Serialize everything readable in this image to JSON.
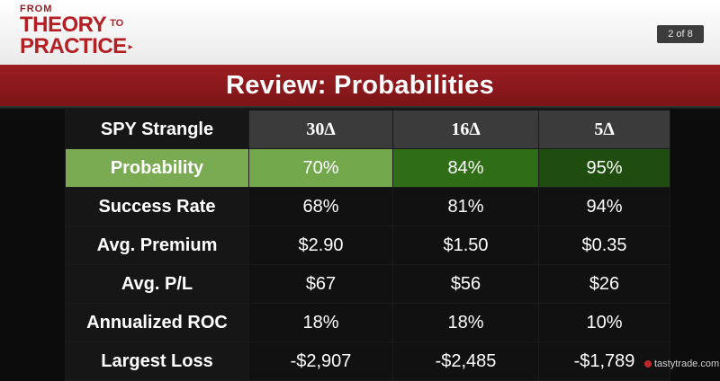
{
  "header": {
    "logo_from": "FROM",
    "logo_theory": "THEORY",
    "logo_to": "TO",
    "logo_practice": "PRACTICE",
    "page_indicator": "2 of 8"
  },
  "title": "Review: Probabilities",
  "table": {
    "corner_label": "SPY Strangle",
    "columns": [
      "30∆",
      "16∆",
      "5∆"
    ],
    "rows": [
      {
        "label": "Probability",
        "values": [
          "70%",
          "84%",
          "95%"
        ]
      },
      {
        "label": "Success Rate",
        "values": [
          "68%",
          "81%",
          "94%"
        ]
      },
      {
        "label": "Avg. Premium",
        "values": [
          "$2.90",
          "$1.50",
          "$0.35"
        ]
      },
      {
        "label": "Avg. P/L",
        "values": [
          "$67",
          "$56",
          "$26"
        ]
      },
      {
        "label": "Annualized ROC",
        "values": [
          "18%",
          "18%",
          "10%"
        ]
      },
      {
        "label": "Largest Loss",
        "values": [
          "-$2,907",
          "-$2,485",
          "-$1,789"
        ]
      }
    ]
  },
  "footer": {
    "brand": "tastytrade.com"
  },
  "colors": {
    "brand_red": "#b41f24",
    "title_band": "#8c191d",
    "probability_light_green": "#72a84b",
    "probability_mid_green": "#2f6e17",
    "probability_dark_green": "#1f4d10"
  }
}
